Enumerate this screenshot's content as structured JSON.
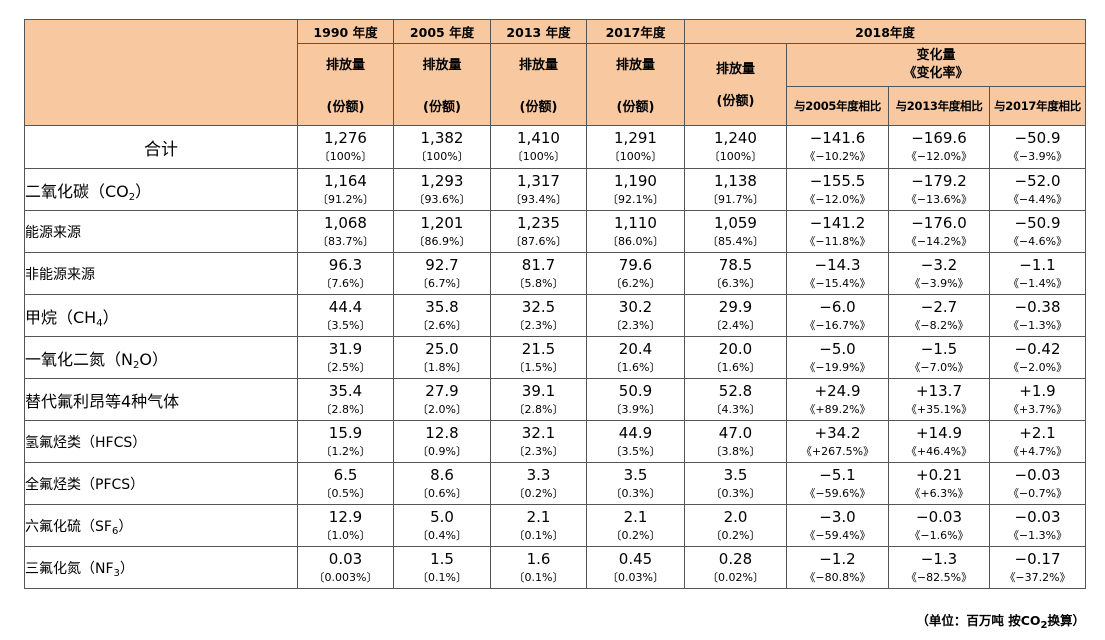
{
  "header": {
    "years": [
      "1990 年度",
      "2005 年度",
      "2013 年度",
      "2017年度"
    ],
    "year_2018": "2018年度",
    "emission_label": "排放量",
    "share_label": "(份额)",
    "change_label_line1": "变化量",
    "change_label_line2": "《变化率》",
    "compare_labels": [
      "与2005年度相比",
      "与2013年度相比",
      "与2017年度相比"
    ]
  },
  "rows": [
    {
      "label": "合计",
      "level": "total",
      "values": [
        "1,276",
        "1,382",
        "1,410",
        "1,291",
        "1,240",
        "−141.6",
        "−169.6",
        "−50.9"
      ],
      "shares": [
        "〔100%〕",
        "〔100%〕",
        "〔100%〕",
        "〔100%〕",
        "〔100%〕",
        "《−10.2%》",
        "《−12.0%》",
        "《−3.9%》"
      ]
    },
    {
      "label": "二氧化碳（CO",
      "sub": "2",
      "tail": "）",
      "level": "main",
      "values": [
        "1,164",
        "1,293",
        "1,317",
        "1,190",
        "1,138",
        "−155.5",
        "−179.2",
        "−52.0"
      ],
      "shares": [
        "〔91.2%〕",
        "〔93.6%〕",
        "〔93.4%〕",
        "〔92.1%〕",
        "〔91.7%〕",
        "《−12.0%》",
        "《−13.6%》",
        "《−4.4%》"
      ]
    },
    {
      "label": "能源来源",
      "level": "sub",
      "values": [
        "1,068",
        "1,201",
        "1,235",
        "1,110",
        "1,059",
        "−141.2",
        "−176.0",
        "−50.9"
      ],
      "shares": [
        "〔83.7%〕",
        "〔86.9%〕",
        "〔87.6%〕",
        "〔86.0%〕",
        "〔85.4%〕",
        "《−11.8%》",
        "《−14.2%》",
        "《−4.6%》"
      ]
    },
    {
      "label": "非能源来源",
      "level": "sub",
      "values": [
        "96.3",
        "92.7",
        "81.7",
        "79.6",
        "78.5",
        "−14.3",
        "−3.2",
        "−1.1"
      ],
      "shares": [
        "〔7.6%〕",
        "〔6.7%〕",
        "〔5.8%〕",
        "〔6.2%〕",
        "〔6.3%〕",
        "《−15.4%》",
        "《−3.9%》",
        "《−1.4%》"
      ]
    },
    {
      "label": "甲烷（CH",
      "sub": "4",
      "tail": "）",
      "level": "main",
      "values": [
        "44.4",
        "35.8",
        "32.5",
        "30.2",
        "29.9",
        "−6.0",
        "−2.7",
        "−0.38"
      ],
      "shares": [
        "〔3.5%〕",
        "〔2.6%〕",
        "〔2.3%〕",
        "〔2.3%〕",
        "〔2.4%〕",
        "《−16.7%》",
        "《−8.2%》",
        "《−1.3%》"
      ]
    },
    {
      "label": "一氧化二氮（N",
      "sub": "2",
      "tail": "O）",
      "level": "main",
      "values": [
        "31.9",
        "25.0",
        "21.5",
        "20.4",
        "20.0",
        "−5.0",
        "−1.5",
        "−0.42"
      ],
      "shares": [
        "〔2.5%〕",
        "〔1.8%〕",
        "〔1.5%〕",
        "〔1.6%〕",
        "〔1.6%〕",
        "《−19.9%》",
        "《−7.0%》",
        "《−2.0%》"
      ]
    },
    {
      "label": "替代氟利昂等4种气体",
      "level": "main",
      "values": [
        "35.4",
        "27.9",
        "39.1",
        "50.9",
        "52.8",
        "+24.9",
        "+13.7",
        "+1.9"
      ],
      "shares": [
        "〔2.8%〕",
        "〔2.0%〕",
        "〔2.8%〕",
        "〔3.9%〕",
        "〔4.3%〕",
        "《+89.2%》",
        "《+35.1%》",
        "《+3.7%》"
      ]
    },
    {
      "label": "氢氟烃类（HFCS）",
      "level": "sub",
      "values": [
        "15.9",
        "12.8",
        "32.1",
        "44.9",
        "47.0",
        "+34.2",
        "+14.9",
        "+2.1"
      ],
      "shares": [
        "〔1.2%〕",
        "〔0.9%〕",
        "〔2.3%〕",
        "〔3.5%〕",
        "〔3.8%〕",
        "《+267.5%》",
        "《+46.4%》",
        "《+4.7%》"
      ]
    },
    {
      "label": "全氟烃类（PFCS）",
      "level": "sub",
      "values": [
        "6.5",
        "8.6",
        "3.3",
        "3.5",
        "3.5",
        "−5.1",
        "+0.21",
        "−0.03"
      ],
      "shares": [
        "〔0.5%〕",
        "〔0.6%〕",
        "〔0.2%〕",
        "〔0.3%〕",
        "〔0.3%〕",
        "《−59.6%》",
        "《+6.3%》",
        "《−0.7%》"
      ]
    },
    {
      "label": "六氟化硫（SF",
      "sub": "6",
      "tail": "）",
      "level": "sub",
      "values": [
        "12.9",
        "5.0",
        "2.1",
        "2.1",
        "2.0",
        "−3.0",
        "−0.03",
        "−0.03"
      ],
      "shares": [
        "〔1.0%〕",
        "〔0.4%〕",
        "〔0.1%〕",
        "〔0.2%〕",
        "〔0.2%〕",
        "《−59.4%》",
        "《−1.6%》",
        "《−1.3%》"
      ]
    },
    {
      "label": "三氟化氮（NF",
      "sub": "3",
      "tail": "）",
      "level": "sub",
      "values": [
        "0.03",
        "1.5",
        "1.6",
        "0.45",
        "0.28",
        "−1.2",
        "−1.3",
        "−0.17"
      ],
      "shares": [
        "〔0.003%〕",
        "〔0.1%〕",
        "〔0.1%〕",
        "〔0.03%〕",
        "〔0.02%〕",
        "《−80.8%》",
        "《−82.5%》",
        "《−37.2%》"
      ]
    }
  ],
  "note": {
    "prefix": "（单位：百万吨 按CO",
    "sub": "2",
    "suffix": "换算）"
  },
  "colors": {
    "header_bg": "#f8c9a1",
    "border": "#555555"
  }
}
